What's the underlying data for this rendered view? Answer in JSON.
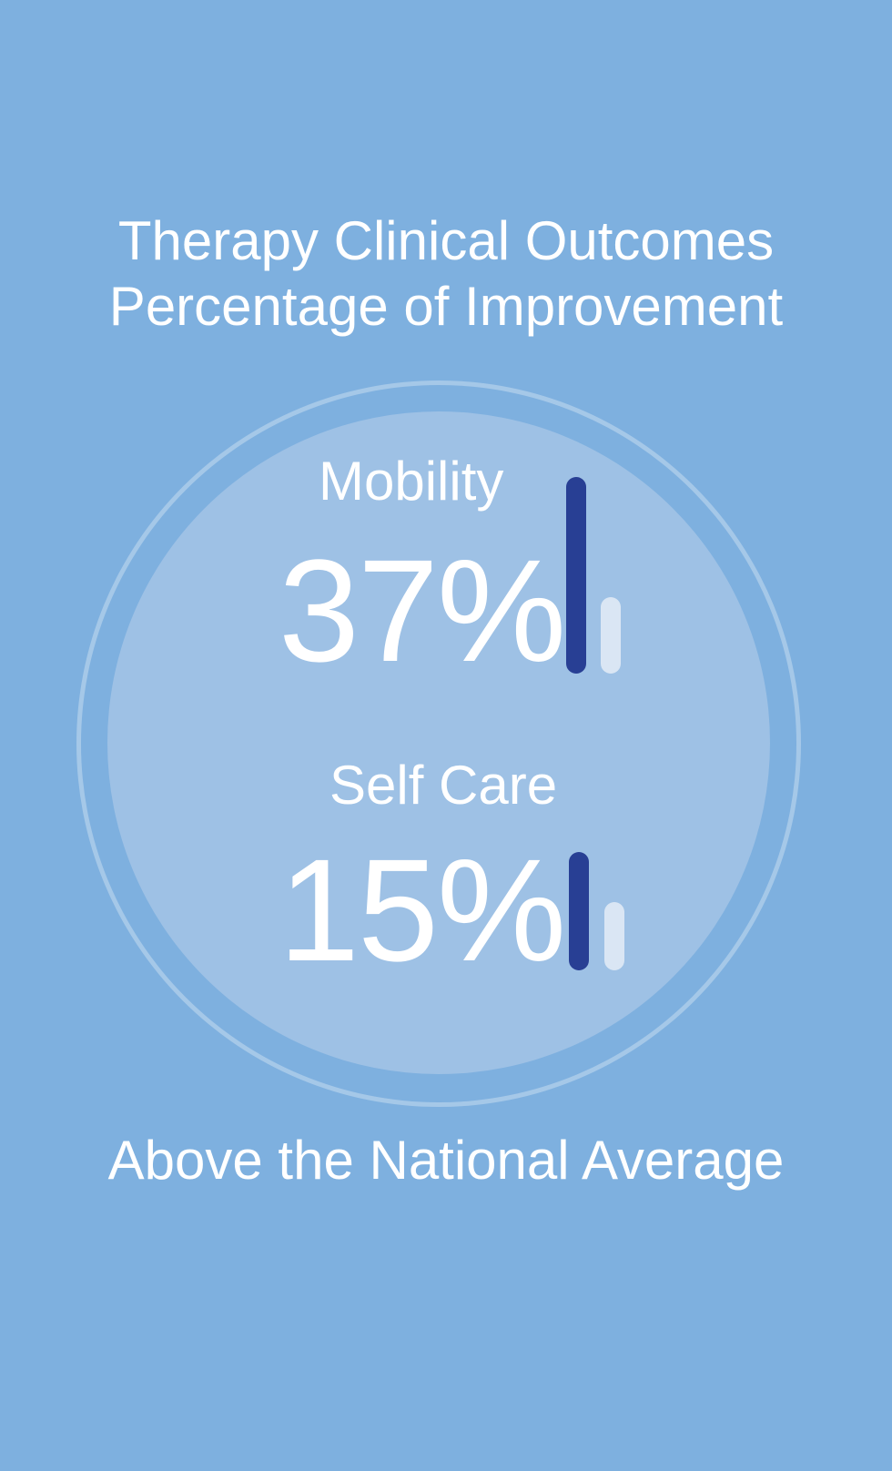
{
  "title": {
    "line1": "Therapy Clinical Outcomes",
    "line2": "Percentage of Improvement"
  },
  "metrics": [
    {
      "label": "Mobility",
      "value": "37%",
      "bars": {
        "primary": 1.0,
        "secondary": 0.39
      }
    },
    {
      "label": "Self Care",
      "value": "15%",
      "bars": {
        "primary": 1.0,
        "secondary": 0.58
      }
    }
  ],
  "footer": "Above the National Average",
  "colors": {
    "background": "#7eb0df",
    "inner_circle": "#9ec1e5",
    "bar_primary": "#283f94",
    "bar_secondary": "#dae6f4",
    "text": "#ffffff"
  }
}
